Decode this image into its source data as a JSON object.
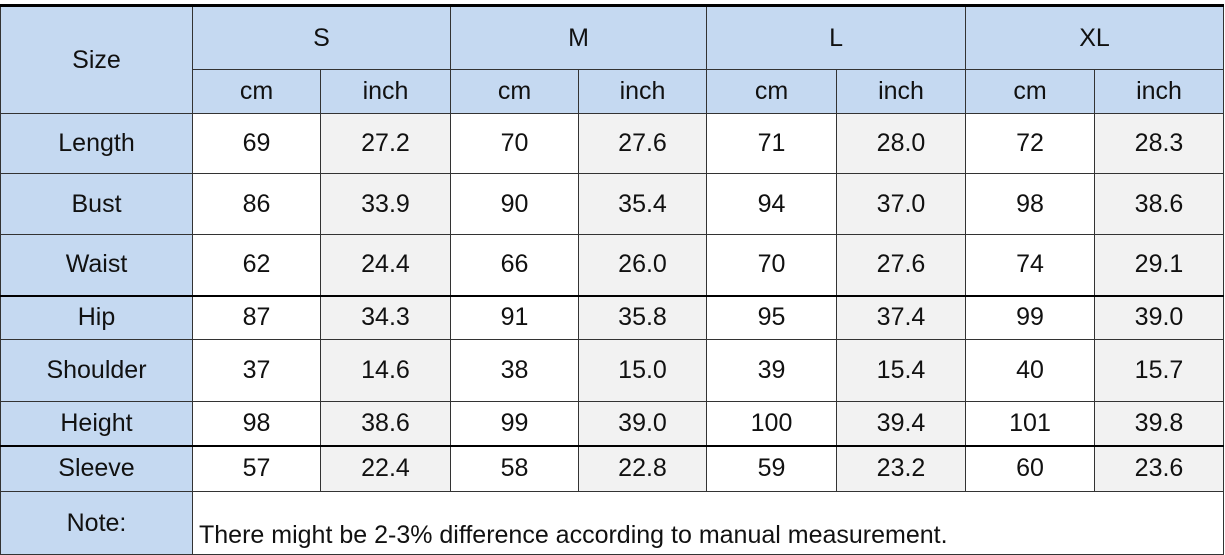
{
  "table": {
    "size_label": "Size",
    "sizes": [
      "S",
      "M",
      "L",
      "XL"
    ],
    "units": [
      "cm",
      "inch",
      "cm",
      "inch",
      "cm",
      "inch",
      "cm",
      "inch"
    ],
    "rows": [
      {
        "label": "Length",
        "values": [
          "69",
          "27.2",
          "70",
          "27.6",
          "71",
          "28.0",
          "72",
          "28.3"
        ]
      },
      {
        "label": "Bust",
        "values": [
          "86",
          "33.9",
          "90",
          "35.4",
          "94",
          "37.0",
          "98",
          "38.6"
        ]
      },
      {
        "label": "Waist",
        "values": [
          "62",
          "24.4",
          "66",
          "26.0",
          "70",
          "27.6",
          "74",
          "29.1"
        ]
      },
      {
        "label": "Hip",
        "values": [
          "87",
          "34.3",
          "91",
          "35.8",
          "95",
          "37.4",
          "99",
          "39.0"
        ]
      },
      {
        "label": "Shoulder",
        "values": [
          "37",
          "14.6",
          "38",
          "15.0",
          "39",
          "15.4",
          "40",
          "15.7"
        ]
      },
      {
        "label": "Height",
        "values": [
          "98",
          "38.6",
          "99",
          "39.0",
          "100",
          "39.4",
          "101",
          "39.8"
        ]
      },
      {
        "label": "Sleeve",
        "values": [
          "57",
          "22.4",
          "58",
          "22.8",
          "59",
          "23.2",
          "60",
          "23.6"
        ]
      }
    ],
    "note": {
      "label": "Note:",
      "text": "There might be 2-3% difference according to manual measurement."
    }
  }
}
